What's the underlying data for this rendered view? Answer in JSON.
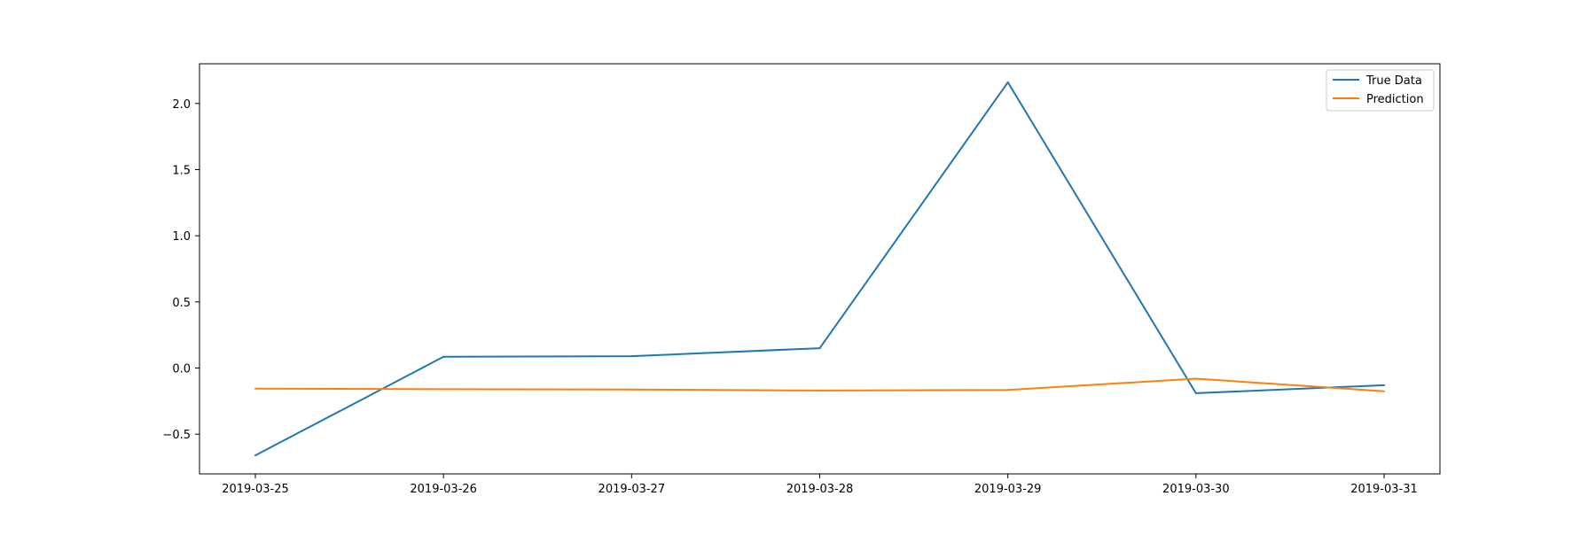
{
  "chart_data": {
    "type": "line",
    "title": "",
    "xlabel": "",
    "ylabel": "",
    "x": [
      "2019-03-25",
      "2019-03-26",
      "2019-03-27",
      "2019-03-28",
      "2019-03-29",
      "2019-03-30",
      "2019-03-31"
    ],
    "x_ticks": [
      "2019-03-25",
      "2019-03-26",
      "2019-03-27",
      "2019-03-28",
      "2019-03-29",
      "2019-03-30",
      "2019-03-31"
    ],
    "y_ticks": [
      -0.5,
      0.0,
      0.5,
      1.0,
      1.5,
      2.0
    ],
    "y_tick_labels": [
      "−0.5",
      "0.0",
      "0.5",
      "1.0",
      "1.5",
      "2.0"
    ],
    "ylim": [
      -0.8,
      2.3
    ],
    "grid": false,
    "legend_position": "top-right",
    "series": [
      {
        "name": "True Data",
        "color": "#1f77b4",
        "values": [
          -0.66,
          0.085,
          0.09,
          0.15,
          2.16,
          -0.19,
          -0.13
        ]
      },
      {
        "name": "Prediction",
        "color": "#ff7f0e",
        "values": [
          -0.155,
          -0.16,
          -0.162,
          -0.17,
          -0.165,
          -0.08,
          -0.175
        ]
      }
    ]
  }
}
